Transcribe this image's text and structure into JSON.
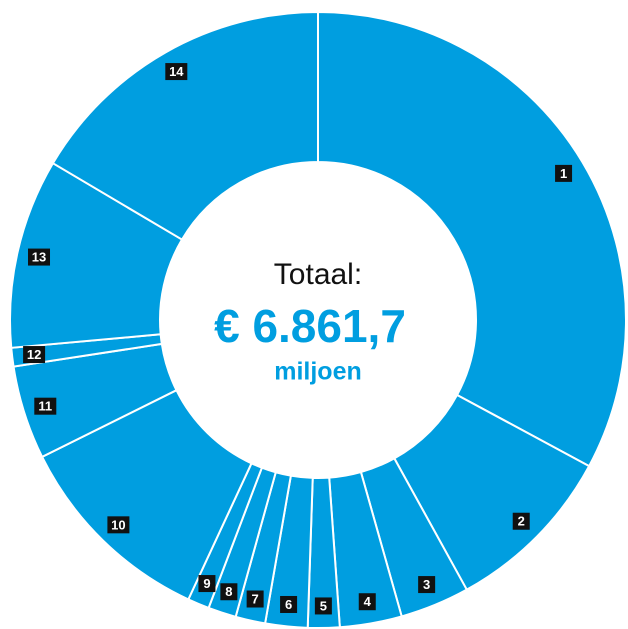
{
  "chart_data": {
    "type": "donut",
    "center_texts": [
      "Totaal:",
      "€ 6.861,7",
      "miljoen"
    ],
    "categories": [
      "1",
      "2",
      "3",
      "4",
      "5",
      "6",
      "7",
      "8",
      "9",
      "10",
      "11",
      "12",
      "13",
      "14"
    ],
    "values": [
      2255,
      625,
      250,
      223,
      114,
      152,
      107,
      101,
      78,
      738,
      337,
      67,
      682,
      1132
    ],
    "color": "#009ee0"
  }
}
